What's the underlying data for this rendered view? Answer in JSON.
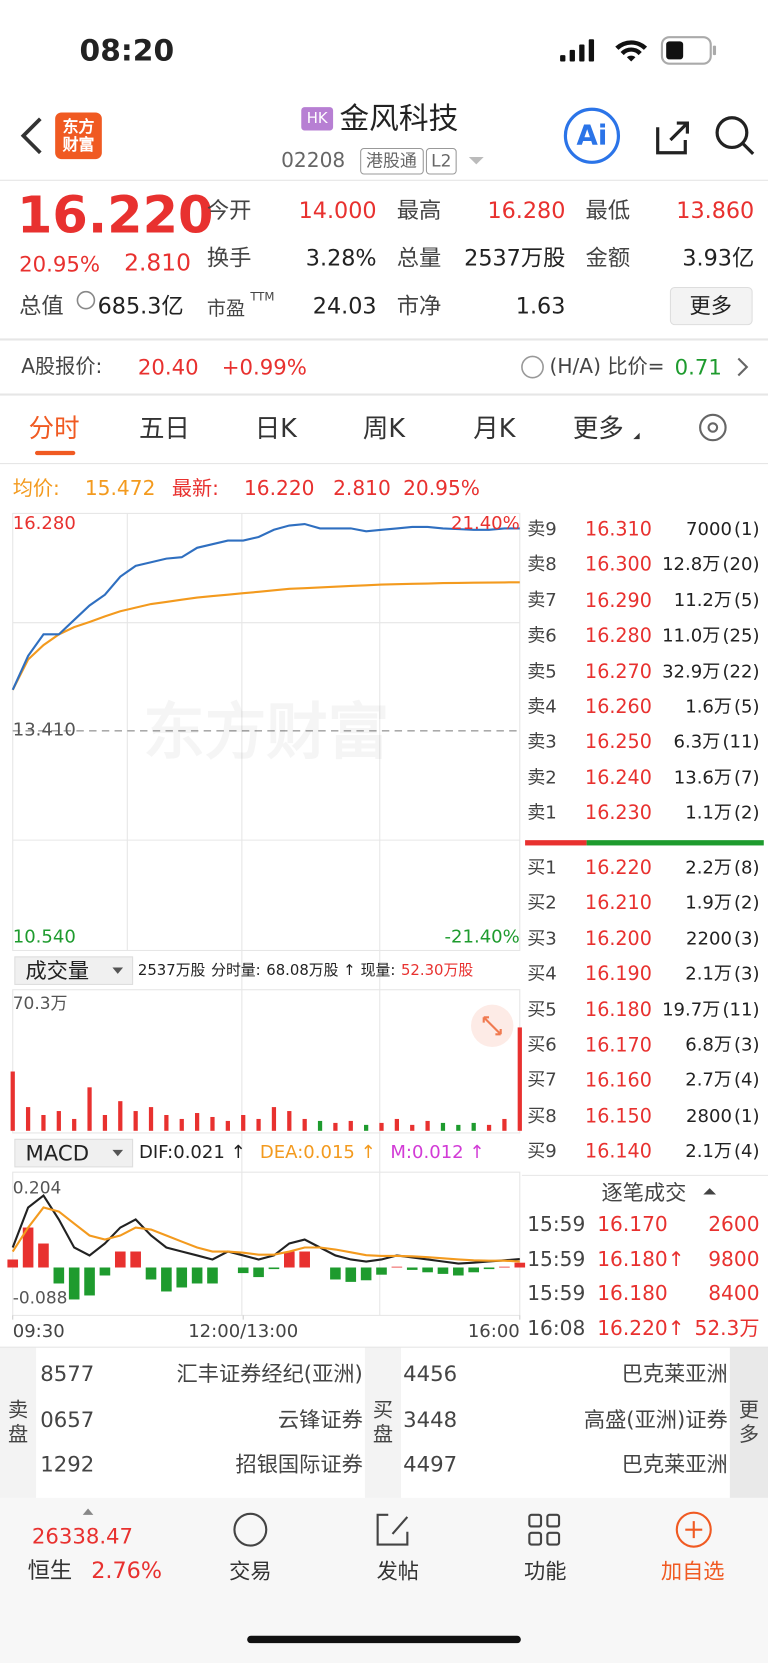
{
  "status_bar": {
    "time": "08:20"
  },
  "header": {
    "logo": "东方财富",
    "market": "HK",
    "name": "金风科技",
    "code": "02208",
    "tags": [
      "港股通",
      "L2"
    ],
    "ai": "Ai"
  },
  "quote": {
    "price": "16.220",
    "change_pct": "20.95%",
    "change": "2.810",
    "stats": [
      [
        {
          "label": "今开",
          "value": "14.000"
        },
        {
          "label": "最高",
          "value": "16.280"
        },
        {
          "label": "最低",
          "value": "13.860"
        }
      ],
      [
        {
          "label": "换手",
          "value": "3.28%"
        },
        {
          "label": "总量",
          "value": "2537万股"
        },
        {
          "label": "金额",
          "value": "3.93亿"
        }
      ],
      [
        {
          "label": "市盈",
          "note": "TTM",
          "value": "24.03"
        },
        {
          "label": "市净",
          "value": "1.63"
        }
      ]
    ],
    "market_cap": {
      "label": "总值",
      "value": "685.3亿"
    },
    "more": "更多"
  },
  "a_share": {
    "label": "A股报价:",
    "price": "20.40",
    "change": "+0.99%",
    "ratio_label": "(H/A) 比价=",
    "ratio": "0.71"
  },
  "tabs": [
    "分时",
    "五日",
    "日K",
    "周K",
    "月K",
    "更多"
  ],
  "summary": {
    "avg_label": "均价:",
    "avg": "15.472",
    "latest_label": "最新:",
    "latest": "16.220",
    "change": "2.810",
    "change_pct": "20.95%"
  },
  "charts": {
    "price": {
      "type": "line",
      "watermark": "东方财富",
      "x": [
        0,
        10,
        20,
        30,
        40,
        50,
        60,
        70,
        80,
        90,
        100,
        110,
        120,
        130,
        140,
        150,
        160,
        170,
        180,
        190,
        200,
        210,
        220,
        230,
        240,
        250,
        260,
        270,
        280,
        290,
        300,
        310,
        320,
        330
      ],
      "xlim": [
        0,
        330
      ],
      "xticks": [
        {
          "value": 0,
          "label": "09:30"
        },
        {
          "value": 150,
          "label": "12:00/13:00"
        },
        {
          "value": 330,
          "label": "16:00"
        }
      ],
      "ylim": [
        10.54,
        16.28
      ],
      "yticks": [
        {
          "value": 16.28,
          "label": "16.280"
        },
        {
          "value": 13.41,
          "label": "13.410"
        },
        {
          "value": 10.54,
          "label": "10.540"
        }
      ],
      "y2lim": [
        -21.4,
        21.4
      ],
      "y2ticks": [
        {
          "value": 21.4,
          "label": "21.40%"
        },
        {
          "value": -21.4,
          "label": "-21.40%"
        }
      ],
      "series": [
        {
          "color": "#2f6fc0",
          "values": [
            13.98,
            14.45,
            14.75,
            14.75,
            14.95,
            15.15,
            15.3,
            15.55,
            15.7,
            15.75,
            15.8,
            15.82,
            15.95,
            16.0,
            16.05,
            16.05,
            16.1,
            16.2,
            16.26,
            16.28,
            16.22,
            16.22,
            16.22,
            16.18,
            16.2,
            16.22,
            16.24,
            16.24,
            16.22,
            16.21,
            16.2,
            16.2,
            16.22,
            16.22
          ]
        },
        {
          "color": "#f39a1e",
          "values": [
            13.98,
            14.4,
            14.6,
            14.75,
            14.85,
            14.92,
            15.0,
            15.07,
            15.12,
            15.17,
            15.2,
            15.23,
            15.26,
            15.28,
            15.3,
            15.32,
            15.34,
            15.36,
            15.38,
            15.39,
            15.4,
            15.41,
            15.42,
            15.43,
            15.44,
            15.445,
            15.45,
            15.455,
            15.46,
            15.463,
            15.466,
            15.468,
            15.47,
            15.472
          ]
        }
      ]
    },
    "volume": {
      "type": "bar",
      "up_color": "#e8312f",
      "down_color": "#1e9b2e",
      "header": {
        "dropdown": "成交量",
        "total": "2537万股",
        "period_label": "分时量:",
        "period": "68.08万股 ↑",
        "current_label": "现量:",
        "current": "52.30万股"
      },
      "ylim": [
        0,
        70.3
      ],
      "yticks": [
        {
          "value": 70.3,
          "label": "70.3万"
        }
      ],
      "values": [
        30,
        12,
        8,
        10,
        6,
        22,
        8,
        15,
        10,
        12,
        8,
        6,
        9,
        7,
        5,
        8,
        6,
        12,
        10,
        6,
        5,
        4,
        5,
        3,
        4,
        6,
        3,
        5,
        4,
        3,
        4,
        3,
        6,
        52.3
      ]
    },
    "macd": {
      "type": "macd",
      "up_color": "#e8312f",
      "down_color": "#1e9b2e",
      "header": {
        "name": "MACD",
        "dif": "DIF:0.021 ↑",
        "dea": "DEA:0.015 ↑",
        "m": "M:0.012 ↑"
      },
      "ylim": [
        -0.088,
        0.204
      ],
      "yticks": [
        0.204,
        -0.088
      ],
      "series": [
        {
          "color": "#222222",
          "values": [
            0.05,
            0.15,
            0.18,
            0.12,
            0.05,
            0.03,
            0.06,
            0.1,
            0.12,
            0.08,
            0.05,
            0.04,
            0.03,
            0.02,
            0.04,
            0.03,
            0.02,
            0.03,
            0.06,
            0.07,
            0.05,
            0.03,
            0.02,
            0.015,
            0.02,
            0.03,
            0.025,
            0.02,
            0.015,
            0.01,
            0.012,
            0.015,
            0.018,
            0.021
          ]
        },
        {
          "color": "#f39a1e",
          "values": [
            0.04,
            0.1,
            0.15,
            0.14,
            0.11,
            0.08,
            0.07,
            0.08,
            0.1,
            0.095,
            0.08,
            0.065,
            0.05,
            0.04,
            0.04,
            0.037,
            0.032,
            0.032,
            0.04,
            0.05,
            0.05,
            0.045,
            0.038,
            0.031,
            0.029,
            0.029,
            0.028,
            0.026,
            0.023,
            0.02,
            0.018,
            0.017,
            0.017,
            0.015
          ]
        }
      ],
      "hist": [
        0.02,
        0.1,
        0.06,
        -0.04,
        -0.08,
        -0.07,
        -0.02,
        0.04,
        0.04,
        -0.03,
        -0.06,
        -0.05,
        -0.04,
        -0.04,
        0.0,
        -0.014,
        -0.024,
        -0.004,
        0.04,
        0.04,
        0.0,
        -0.03,
        -0.036,
        -0.032,
        -0.018,
        0.002,
        -0.006,
        -0.012,
        -0.016,
        -0.02,
        -0.012,
        -0.004,
        0.002,
        0.012
      ]
    }
  },
  "order_book": {
    "asks": [
      {
        "label": "卖9",
        "price": "16.310",
        "volume": "7000",
        "orders": "(1)"
      },
      {
        "label": "卖8",
        "price": "16.300",
        "volume": "12.8万",
        "orders": "(20)"
      },
      {
        "label": "卖7",
        "price": "16.290",
        "volume": "11.2万",
        "orders": "(5)"
      },
      {
        "label": "卖6",
        "price": "16.280",
        "volume": "11.0万",
        "orders": "(25)"
      },
      {
        "label": "卖5",
        "price": "16.270",
        "volume": "32.9万",
        "orders": "(22)"
      },
      {
        "label": "卖4",
        "price": "16.260",
        "volume": "1.6万",
        "orders": "(5)"
      },
      {
        "label": "卖3",
        "price": "16.250",
        "volume": "6.3万",
        "orders": "(11)"
      },
      {
        "label": "卖2",
        "price": "16.240",
        "volume": "13.6万",
        "orders": "(7)"
      },
      {
        "label": "卖1",
        "price": "16.230",
        "volume": "1.1万",
        "orders": "(2)"
      }
    ],
    "bids": [
      {
        "label": "买1",
        "price": "16.220",
        "volume": "2.2万",
        "orders": "(8)"
      },
      {
        "label": "买2",
        "price": "16.210",
        "volume": "1.9万",
        "orders": "(2)"
      },
      {
        "label": "买3",
        "price": "16.200",
        "volume": "2200",
        "orders": "(3)"
      },
      {
        "label": "买4",
        "price": "16.190",
        "volume": "2.1万",
        "orders": "(3)"
      },
      {
        "label": "买5",
        "price": "16.180",
        "volume": "19.7万",
        "orders": "(11)"
      },
      {
        "label": "买6",
        "price": "16.170",
        "volume": "6.8万",
        "orders": "(3)"
      },
      {
        "label": "买7",
        "price": "16.160",
        "volume": "2.7万",
        "orders": "(4)"
      },
      {
        "label": "买8",
        "price": "16.150",
        "volume": "2800",
        "orders": "(1)"
      },
      {
        "label": "买9",
        "price": "16.140",
        "volume": "2.1万",
        "orders": "(4)"
      }
    ]
  },
  "trades": {
    "title": "逐笔成交",
    "rows": [
      {
        "time": "15:59",
        "price": "16.170",
        "volume": "2600"
      },
      {
        "time": "15:59",
        "price": "16.180↑",
        "volume": "9800"
      },
      {
        "time": "15:59",
        "price": "16.180",
        "volume": "8400"
      },
      {
        "time": "16:08",
        "price": "16.220↑",
        "volume": "52.3万"
      }
    ]
  },
  "brokers": {
    "ask_label": "卖盘",
    "asks": [
      {
        "code": "8577",
        "name": "汇丰证券经纪(亚洲)"
      },
      {
        "code": "0657",
        "name": "云锋证券"
      },
      {
        "code": "1292",
        "name": "招银国际证券"
      }
    ],
    "bid_label": "买盘",
    "bids": [
      {
        "code": "4456",
        "name": "巴克莱亚洲"
      },
      {
        "code": "3448",
        "name": "高盛(亚洲)证券"
      },
      {
        "code": "4497",
        "name": "巴克莱亚洲"
      }
    ],
    "more": "更多"
  },
  "nav": {
    "index_value": "26338.47",
    "index_name": "恒生",
    "index_change": "2.76%",
    "items": [
      "交易",
      "发帖",
      "功能",
      "加自选"
    ]
  }
}
